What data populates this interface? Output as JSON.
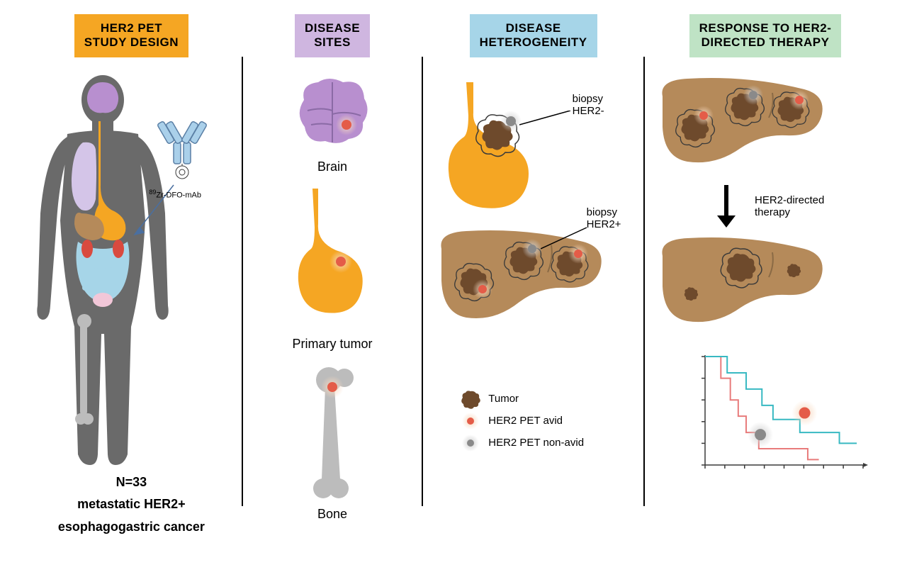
{
  "headers": {
    "col1": {
      "line1": "HER2 PET",
      "line2": "STUDY DESIGN",
      "bg": "#f5a623"
    },
    "col2": {
      "line1": "DISEASE",
      "line2": "SITES",
      "bg": "#cfb6e0"
    },
    "col3": {
      "line1": "DISEASE",
      "line2": "HETEROGENEITY",
      "bg": "#a6d5e8"
    },
    "col4": {
      "line1": "RESPONSE TO HER2-",
      "line2": "DIRECTED THERAPY",
      "bg": "#bfe3c5"
    }
  },
  "col1": {
    "tracer_label": "89Zr-DFO-mAb",
    "caption_bold": "N=33",
    "caption_l2": "metastatic HER2+",
    "caption_l3": "esophagogastric cancer",
    "body_fill": "#6a6a6a",
    "brain_fill": "#b88fcf",
    "stomach_fill": "#f5a623",
    "liver_fill": "#b58a5a",
    "lung_fill": "#d4c5e8",
    "intestine_fill": "#a6d5e8",
    "bone_fill": "#bcbcbc",
    "kidney_fill": "#d94a3f",
    "bladder_fill": "#f2c7d8",
    "antibody_color": "#aad0ea",
    "arrow_color": "#4a6fa0"
  },
  "col2": {
    "brain_label": "Brain",
    "primary_label": "Primary tumor",
    "bone_label": "Bone",
    "brain_fill": "#b88fcf",
    "stomach_fill": "#f5a623",
    "bone_fill": "#bcbcbc",
    "lesion_red": "#e45c48",
    "lesion_glow": "#f7d9c0"
  },
  "col3": {
    "biopsy_neg": "biopsy\nHER2-",
    "biopsy_pos": "biopsy\nHER2+",
    "stomach_fill": "#f5a623",
    "liver_fill": "#b58a5a",
    "tumor_fill": "#6e4a2c",
    "tumor_outline": "#3a3a3a",
    "avid_color": "#e45c48",
    "nonavid_color": "#8a8a8a",
    "legend": {
      "tumor": "Tumor",
      "avid": "HER2 PET avid",
      "nonavid": "HER2 PET non-avid"
    }
  },
  "col4": {
    "therapy_label": "HER2-directed\ntherapy",
    "liver_fill": "#b58a5a",
    "tumor_fill": "#6e4a2c",
    "avid_color": "#e45c48",
    "nonavid_color": "#8a8a8a",
    "chart": {
      "type": "kaplan-meier-step",
      "series_avid_color": "#38b9c2",
      "series_nonavid_color": "#e87b7b",
      "axis_color": "#3a3a3a",
      "xrange": [
        0,
        10
      ],
      "yrange": [
        0,
        1
      ],
      "series_nonavid": [
        [
          0,
          1
        ],
        [
          1,
          1
        ],
        [
          1,
          0.8
        ],
        [
          1.6,
          0.8
        ],
        [
          1.6,
          0.6
        ],
        [
          2.1,
          0.6
        ],
        [
          2.1,
          0.45
        ],
        [
          2.6,
          0.45
        ],
        [
          2.6,
          0.3
        ],
        [
          3.4,
          0.3
        ],
        [
          3.4,
          0.15
        ],
        [
          6.5,
          0.15
        ],
        [
          6.5,
          0.05
        ],
        [
          7.2,
          0.05
        ]
      ],
      "series_avid": [
        [
          0,
          1
        ],
        [
          1.4,
          1
        ],
        [
          1.4,
          0.85
        ],
        [
          2.6,
          0.85
        ],
        [
          2.6,
          0.7
        ],
        [
          3.6,
          0.7
        ],
        [
          3.6,
          0.55
        ],
        [
          4.3,
          0.55
        ],
        [
          4.3,
          0.42
        ],
        [
          6.0,
          0.42
        ],
        [
          6.0,
          0.3
        ],
        [
          8.5,
          0.3
        ],
        [
          8.5,
          0.2
        ],
        [
          9.6,
          0.2
        ]
      ],
      "avid_marker_pos": [
        6.3,
        0.48
      ],
      "nonavid_marker_pos": [
        3.5,
        0.28
      ]
    }
  },
  "colors": {
    "divider": "#000000",
    "bg": "#ffffff"
  }
}
